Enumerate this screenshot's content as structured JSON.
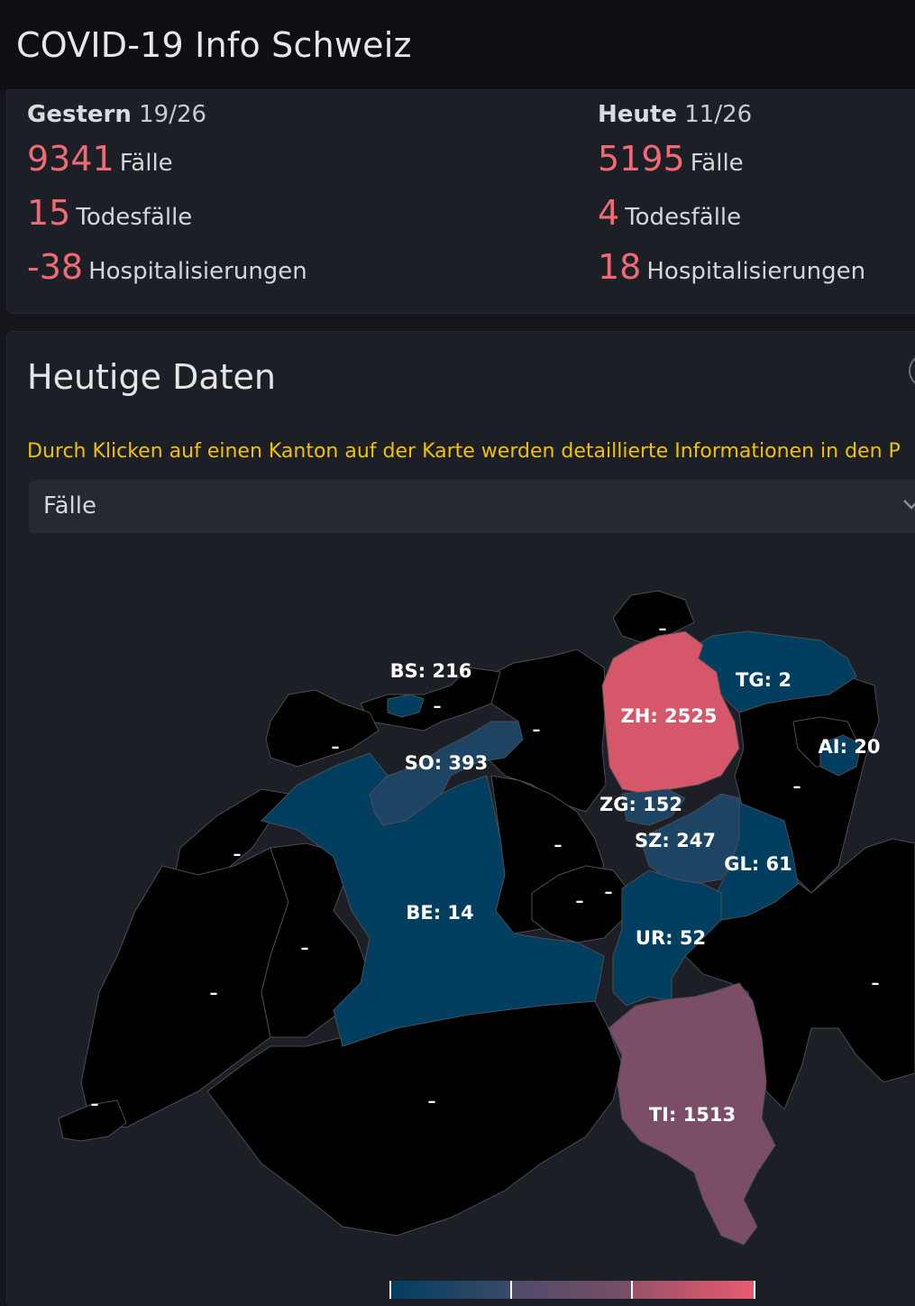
{
  "app": {
    "title": "COVID-19 Info Schweiz"
  },
  "yesterday": {
    "label": "Gestern",
    "ratio": "19/26",
    "cases": "9341",
    "cases_label": "Fälle",
    "deaths": "15",
    "deaths_label": "Todesfälle",
    "hosp": "-38",
    "hosp_label": "Hospitalisierungen"
  },
  "today": {
    "label": "Heute",
    "ratio": "11/26",
    "cases": "5195",
    "cases_label": "Fälle",
    "deaths": "4",
    "deaths_label": "Todesfälle",
    "hosp": "18",
    "hosp_label": "Hospitalisierungen"
  },
  "section": {
    "title": "Heutige Daten",
    "hint": "Durch Klicken auf einen Kanton auf der Karte werden detaillierte Informationen in den P",
    "select_value": "Fälle"
  },
  "map": {
    "colors": {
      "none": "#000000",
      "low": "#023e5f",
      "mid": "#1d4563",
      "high": "#7c4d66",
      "top": "#d6576a",
      "border": "#4a4d55"
    },
    "cantons": [
      {
        "code": "ZH",
        "label": "ZH: 2525",
        "value": 2525,
        "level": "top"
      },
      {
        "code": "TI",
        "label": "TI: 1513",
        "value": 1513,
        "level": "high"
      },
      {
        "code": "SO",
        "label": "SO: 393",
        "value": 393,
        "level": "mid"
      },
      {
        "code": "SZ",
        "label": "SZ: 247",
        "value": 247,
        "level": "mid"
      },
      {
        "code": "BS",
        "label": "BS: 216",
        "value": 216,
        "level": "low"
      },
      {
        "code": "ZG",
        "label": "ZG: 152",
        "value": 152,
        "level": "mid"
      },
      {
        "code": "GL",
        "label": "GL: 61",
        "value": 61,
        "level": "low"
      },
      {
        "code": "UR",
        "label": "UR: 52",
        "value": 52,
        "level": "low"
      },
      {
        "code": "AI",
        "label": "AI: 20",
        "value": 20,
        "level": "low"
      },
      {
        "code": "BE",
        "label": "BE: 14",
        "value": 14,
        "level": "low"
      },
      {
        "code": "TG",
        "label": "TG: 2",
        "value": 2,
        "level": "low"
      }
    ],
    "no_data_marker": "–"
  }
}
